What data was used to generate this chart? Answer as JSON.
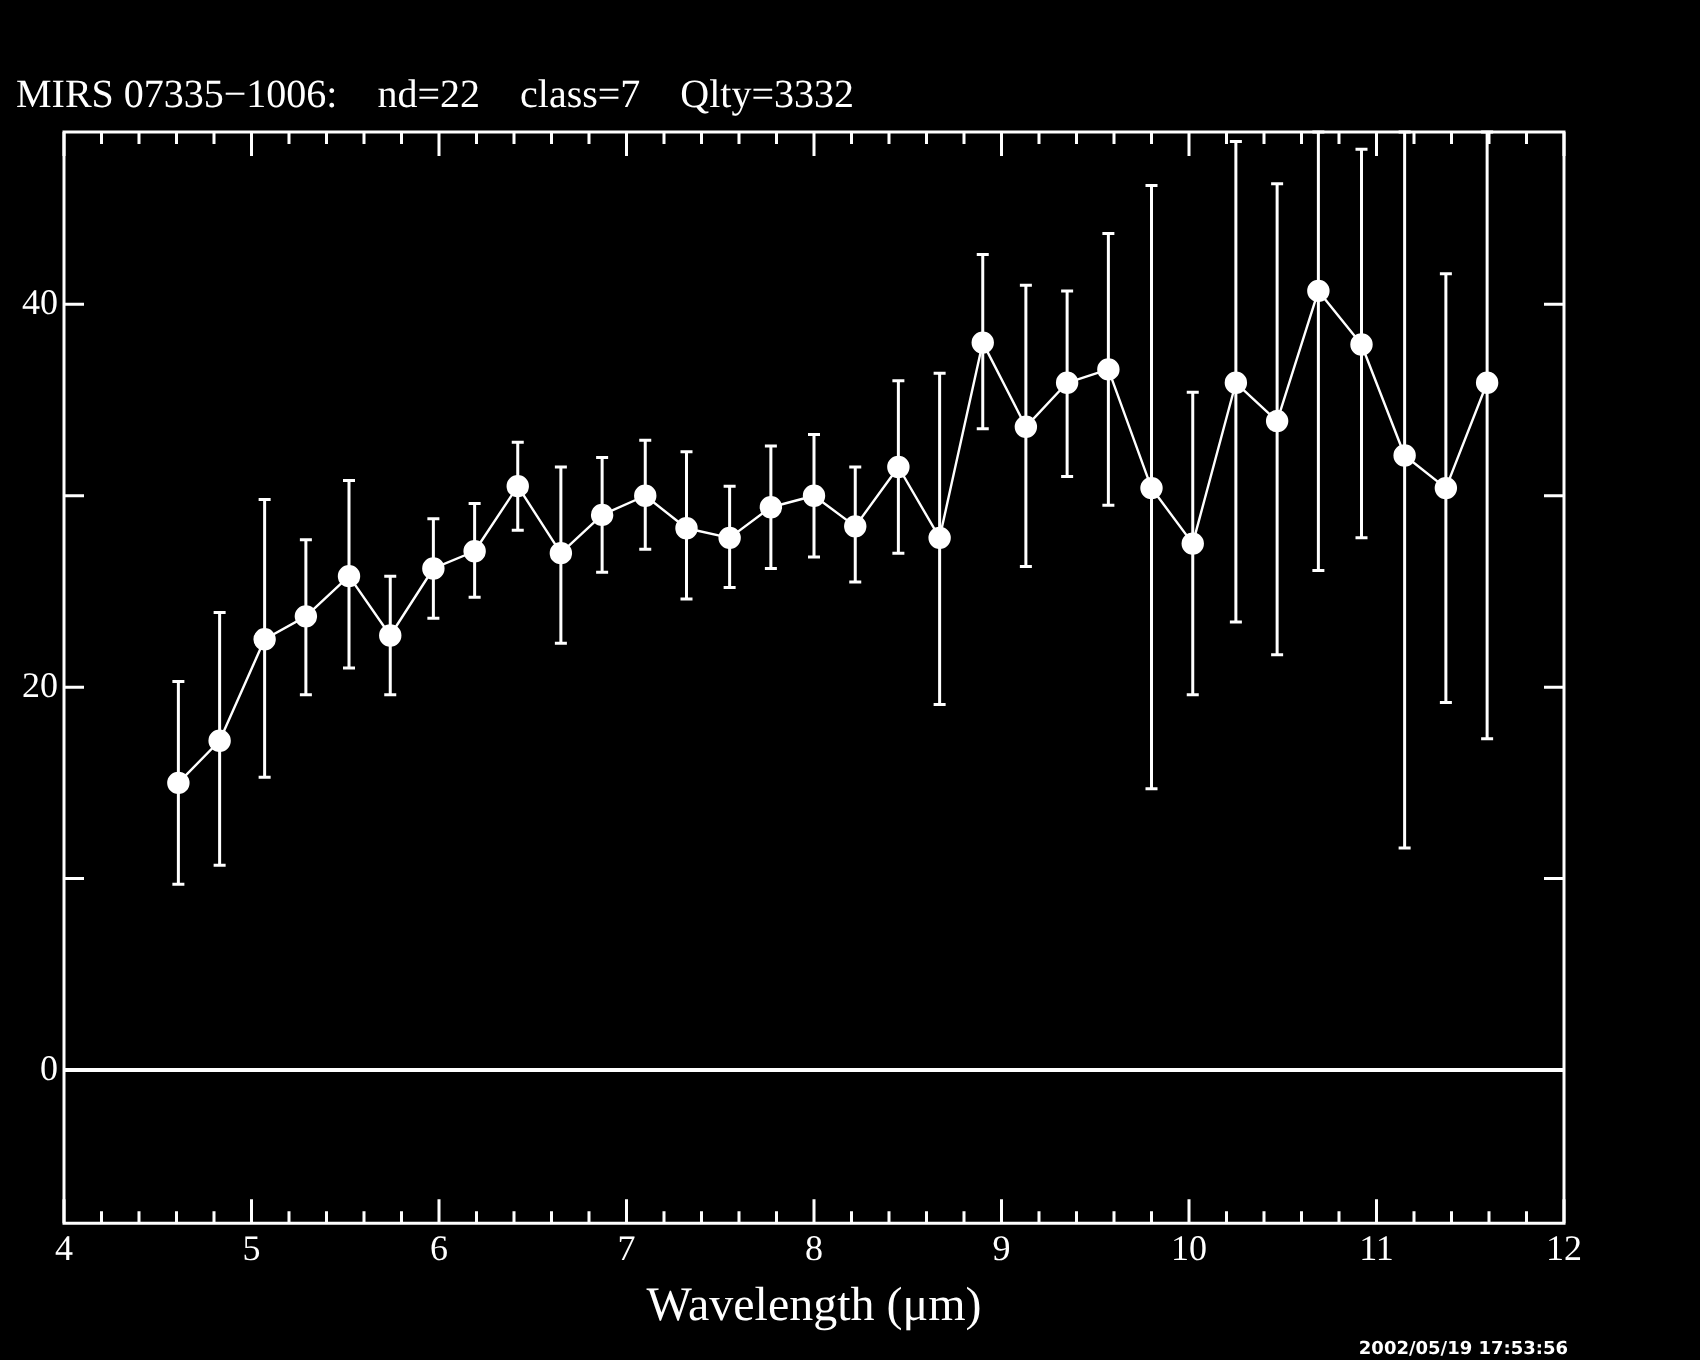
{
  "chart_data": {
    "type": "line",
    "title": "MIRS 07335−1006:    nd=22    class=7    Qlty=3332",
    "xlabel": "Wavelength (μm)",
    "x": [
      4.61,
      4.83,
      5.07,
      5.29,
      5.52,
      5.74,
      5.97,
      6.19,
      6.42,
      6.65,
      6.87,
      7.1,
      7.32,
      7.55,
      7.77,
      8.0,
      8.22,
      8.45,
      8.67,
      8.9,
      9.13,
      9.35,
      9.57,
      9.8,
      10.02,
      10.25,
      10.47,
      10.69,
      10.92,
      11.15,
      11.37,
      11.59
    ],
    "values": [
      15.0,
      17.2,
      22.5,
      23.7,
      25.8,
      22.7,
      26.2,
      27.1,
      30.5,
      27.0,
      29.0,
      30.0,
      28.3,
      27.8,
      29.4,
      30.0,
      28.4,
      31.5,
      27.8,
      38.0,
      33.6,
      35.9,
      36.6,
      30.4,
      27.5,
      35.9,
      33.9,
      40.7,
      37.9,
      32.1,
      30.4,
      35.9
    ],
    "errors": [
      [
        9.7,
        20.3
      ],
      [
        10.7,
        23.9
      ],
      [
        15.3,
        29.8
      ],
      [
        19.6,
        27.7
      ],
      [
        21.0,
        30.8
      ],
      [
        19.6,
        25.8
      ],
      [
        23.6,
        28.8
      ],
      [
        24.7,
        29.6
      ],
      [
        28.2,
        32.8
      ],
      [
        22.3,
        31.5
      ],
      [
        26.0,
        32.0
      ],
      [
        27.2,
        32.9
      ],
      [
        24.6,
        32.3
      ],
      [
        25.2,
        30.5
      ],
      [
        26.2,
        32.6
      ],
      [
        26.8,
        33.2
      ],
      [
        25.5,
        31.5
      ],
      [
        27.0,
        36.0
      ],
      [
        19.1,
        36.4
      ],
      [
        33.5,
        42.6
      ],
      [
        26.3,
        41.0
      ],
      [
        31.0,
        40.7
      ],
      [
        29.5,
        43.7
      ],
      [
        14.7,
        46.2
      ],
      [
        19.6,
        35.4
      ],
      [
        23.4,
        48.5
      ],
      [
        21.7,
        46.3
      ],
      [
        26.1,
        49.0
      ],
      [
        27.8,
        48.1
      ],
      [
        11.6,
        49.0
      ],
      [
        19.2,
        41.6
      ],
      [
        17.3,
        49.0
      ]
    ],
    "color": "#ffffff",
    "marker": "circle",
    "line_style": "solid",
    "xlim": [
      4,
      12
    ],
    "ylim": [
      -8,
      49
    ],
    "xticks": [
      4,
      {
        "value": 4.2,
        "label": null
      },
      {
        "value": 4.4,
        "label": null
      },
      {
        "value": 4.6,
        "label": null
      },
      {
        "value": 4.8,
        "label": null
      },
      5,
      {
        "value": 5.2,
        "label": null
      },
      {
        "value": 5.4,
        "label": null
      },
      {
        "value": 5.6,
        "label": null
      },
      {
        "value": 5.8,
        "label": null
      },
      6,
      {
        "value": 6.2,
        "label": null
      },
      {
        "value": 6.4,
        "label": null
      },
      {
        "value": 6.6,
        "label": null
      },
      {
        "value": 6.8,
        "label": null
      },
      7,
      {
        "value": 7.2,
        "label": null
      },
      {
        "value": 7.4,
        "label": null
      },
      {
        "value": 7.6,
        "label": null
      },
      {
        "value": 7.8,
        "label": null
      },
      8,
      {
        "value": 8.2,
        "label": null
      },
      {
        "value": 8.4,
        "label": null
      },
      {
        "value": 8.6,
        "label": null
      },
      {
        "value": 8.8,
        "label": null
      },
      9,
      {
        "value": 9.2,
        "label": null
      },
      {
        "value": 9.4,
        "label": null
      },
      {
        "value": 9.6,
        "label": null
      },
      {
        "value": 9.8,
        "label": null
      },
      10,
      {
        "value": 10.2,
        "label": null
      },
      {
        "value": 10.4,
        "label": null
      },
      {
        "value": 10.6,
        "label": null
      },
      {
        "value": 10.8,
        "label": null
      },
      11,
      {
        "value": 11.2,
        "label": null
      },
      {
        "value": 11.4,
        "label": null
      },
      {
        "value": 11.6,
        "label": null
      },
      {
        "value": 11.8,
        "label": null
      },
      12
    ],
    "yticks": [
      0,
      {
        "value": 10,
        "label": null
      },
      20,
      {
        "value": 30,
        "label": null
      },
      40
    ],
    "ref_lines": [
      {
        "axis": "y",
        "value": 0,
        "color": "#ffffff"
      }
    ],
    "annotations": [
      "2002/05/19 17:53:56"
    ]
  }
}
